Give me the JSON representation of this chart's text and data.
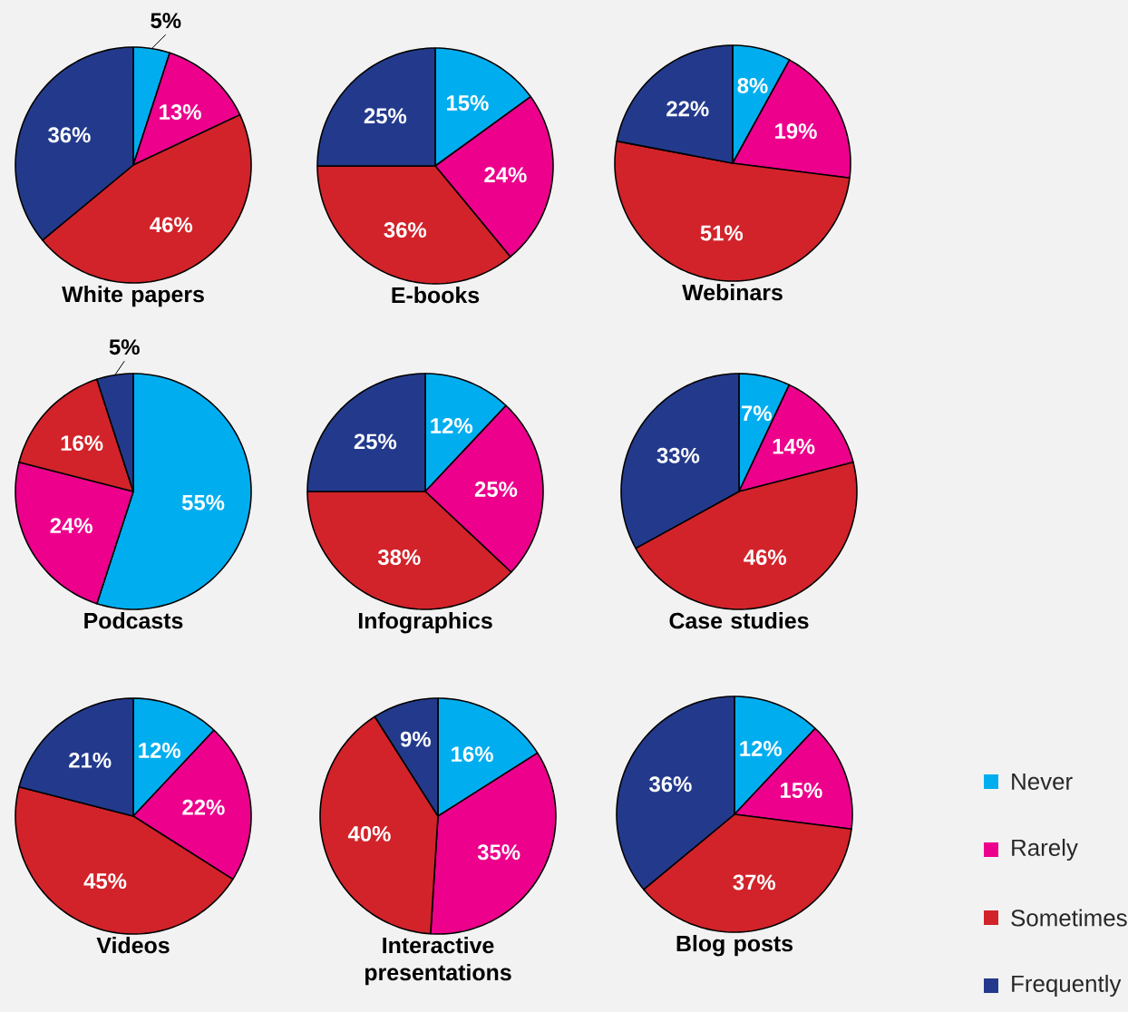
{
  "chart_data": [
    {
      "type": "pie",
      "title": "White papers",
      "values": [
        5,
        13,
        46,
        36
      ],
      "value_labels": [
        "5%",
        "13%",
        "46%",
        "36%"
      ],
      "colors": [
        "#00aeef",
        "#ec008c",
        "#d2232a",
        "#233a8c"
      ]
    },
    {
      "type": "pie",
      "title": "E-books",
      "values": [
        15,
        24,
        36,
        25
      ],
      "value_labels": [
        "15%",
        "24%",
        "36%",
        "25%"
      ],
      "colors": [
        "#00aeef",
        "#ec008c",
        "#d2232a",
        "#233a8c"
      ]
    },
    {
      "type": "pie",
      "title": "Webinars",
      "values": [
        8,
        19,
        51,
        22
      ],
      "value_labels": [
        "8%",
        "19%",
        "51%",
        "22%"
      ],
      "colors": [
        "#00aeef",
        "#ec008c",
        "#d2232a",
        "#233a8c"
      ]
    },
    {
      "type": "pie",
      "title": "Podcasts",
      "values": [
        55,
        24,
        16,
        5
      ],
      "value_labels": [
        "55%",
        "24%",
        "16%",
        "5%"
      ],
      "colors": [
        "#00aeef",
        "#ec008c",
        "#d2232a",
        "#233a8c"
      ]
    },
    {
      "type": "pie",
      "title": "Infographics",
      "values": [
        12,
        25,
        38,
        25
      ],
      "value_labels": [
        "12%",
        "25%",
        "38%",
        "25%"
      ],
      "colors": [
        "#00aeef",
        "#ec008c",
        "#d2232a",
        "#233a8c"
      ]
    },
    {
      "type": "pie",
      "title": "Case studies",
      "values": [
        7,
        14,
        46,
        33
      ],
      "value_labels": [
        "7%",
        "14%",
        "46%",
        "33%"
      ],
      "colors": [
        "#00aeef",
        "#ec008c",
        "#d2232a",
        "#233a8c"
      ]
    },
    {
      "type": "pie",
      "title": "Videos",
      "values": [
        12,
        22,
        45,
        21
      ],
      "value_labels": [
        "12%",
        "22%",
        "45%",
        "21%"
      ],
      "colors": [
        "#00aeef",
        "#ec008c",
        "#d2232a",
        "#233a8c"
      ]
    },
    {
      "type": "pie",
      "title": "Interactive presentations",
      "values": [
        16,
        35,
        40,
        9
      ],
      "value_labels": [
        "16%",
        "35%",
        "40%",
        "9%"
      ],
      "colors": [
        "#00aeef",
        "#ec008c",
        "#d2232a",
        "#233a8c"
      ]
    },
    {
      "type": "pie",
      "title": "Blog posts",
      "categories": [
        "Never",
        "Rarely",
        "Sometimes",
        "Frequently"
      ],
      "values": [
        12,
        15,
        37,
        36
      ],
      "value_labels": [
        "12%",
        "15%",
        "37%",
        "36%"
      ],
      "colors": [
        "#00aeef",
        "#ec008c",
        "#d2232a",
        "#233a8c"
      ],
      "legend": "right"
    }
  ]
}
